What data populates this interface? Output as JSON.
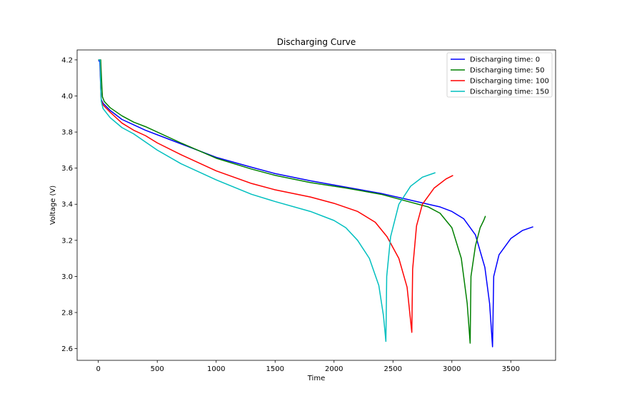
{
  "chart_data": {
    "type": "line",
    "title": "Discharging Curve",
    "xlabel": "Time",
    "ylabel": "Voltage (V)",
    "xlim": [
      -180,
      3880
    ],
    "ylim": [
      2.535,
      4.255
    ],
    "xticks": [
      0,
      500,
      1000,
      1500,
      2000,
      2500,
      3000,
      3500
    ],
    "yticks": [
      2.6,
      2.8,
      3.0,
      3.2,
      3.4,
      3.6,
      3.8,
      4.0,
      4.2
    ],
    "grid": false,
    "legend_position": "top-right",
    "series": [
      {
        "name": "Discharging time: 0",
        "color": "#0000ff",
        "points": [
          [
            0,
            4.195
          ],
          [
            5,
            4.195
          ],
          [
            12,
            4.19
          ],
          [
            20,
            4.05
          ],
          [
            25,
            3.98
          ],
          [
            40,
            3.96
          ],
          [
            100,
            3.92
          ],
          [
            200,
            3.87
          ],
          [
            300,
            3.84
          ],
          [
            400,
            3.81
          ],
          [
            500,
            3.785
          ],
          [
            700,
            3.735
          ],
          [
            1000,
            3.66
          ],
          [
            1300,
            3.605
          ],
          [
            1500,
            3.57
          ],
          [
            1800,
            3.53
          ],
          [
            2100,
            3.495
          ],
          [
            2400,
            3.46
          ],
          [
            2600,
            3.43
          ],
          [
            2800,
            3.4
          ],
          [
            2900,
            3.385
          ],
          [
            3000,
            3.36
          ],
          [
            3100,
            3.32
          ],
          [
            3200,
            3.23
          ],
          [
            3280,
            3.05
          ],
          [
            3320,
            2.85
          ],
          [
            3345,
            2.61
          ],
          [
            3355,
            3.0
          ],
          [
            3400,
            3.12
          ],
          [
            3500,
            3.21
          ],
          [
            3600,
            3.255
          ],
          [
            3690,
            3.275
          ]
        ]
      },
      {
        "name": "Discharging time: 50",
        "color": "#008000",
        "points": [
          [
            0,
            4.2
          ],
          [
            20,
            4.2
          ],
          [
            30,
            4.05
          ],
          [
            35,
            3.995
          ],
          [
            50,
            3.97
          ],
          [
            100,
            3.935
          ],
          [
            200,
            3.89
          ],
          [
            300,
            3.855
          ],
          [
            400,
            3.83
          ],
          [
            500,
            3.8
          ],
          [
            700,
            3.74
          ],
          [
            1000,
            3.655
          ],
          [
            1300,
            3.595
          ],
          [
            1500,
            3.56
          ],
          [
            1800,
            3.52
          ],
          [
            2100,
            3.49
          ],
          [
            2400,
            3.455
          ],
          [
            2600,
            3.42
          ],
          [
            2800,
            3.385
          ],
          [
            2900,
            3.35
          ],
          [
            3000,
            3.27
          ],
          [
            3080,
            3.1
          ],
          [
            3130,
            2.85
          ],
          [
            3155,
            2.63
          ],
          [
            3162,
            3.0
          ],
          [
            3200,
            3.17
          ],
          [
            3240,
            3.27
          ],
          [
            3270,
            3.31
          ],
          [
            3285,
            3.335
          ]
        ]
      },
      {
        "name": "Discharging time: 100",
        "color": "#ff0000",
        "points": [
          [
            0,
            4.2
          ],
          [
            15,
            4.2
          ],
          [
            20,
            4.05
          ],
          [
            25,
            3.975
          ],
          [
            40,
            3.95
          ],
          [
            100,
            3.91
          ],
          [
            200,
            3.85
          ],
          [
            300,
            3.81
          ],
          [
            400,
            3.78
          ],
          [
            500,
            3.74
          ],
          [
            700,
            3.675
          ],
          [
            1000,
            3.585
          ],
          [
            1300,
            3.515
          ],
          [
            1500,
            3.48
          ],
          [
            1800,
            3.44
          ],
          [
            2000,
            3.405
          ],
          [
            2200,
            3.36
          ],
          [
            2350,
            3.3
          ],
          [
            2450,
            3.22
          ],
          [
            2550,
            3.1
          ],
          [
            2620,
            2.94
          ],
          [
            2660,
            2.69
          ],
          [
            2667,
            3.04
          ],
          [
            2700,
            3.28
          ],
          [
            2750,
            3.4
          ],
          [
            2850,
            3.49
          ],
          [
            2950,
            3.54
          ],
          [
            3010,
            3.56
          ]
        ]
      },
      {
        "name": "Discharging time: 150",
        "color": "#00bfbf",
        "points": [
          [
            0,
            4.2
          ],
          [
            15,
            4.2
          ],
          [
            20,
            4.05
          ],
          [
            25,
            3.97
          ],
          [
            40,
            3.93
          ],
          [
            100,
            3.88
          ],
          [
            200,
            3.825
          ],
          [
            300,
            3.79
          ],
          [
            400,
            3.745
          ],
          [
            500,
            3.7
          ],
          [
            700,
            3.625
          ],
          [
            1000,
            3.535
          ],
          [
            1300,
            3.455
          ],
          [
            1500,
            3.415
          ],
          [
            1800,
            3.36
          ],
          [
            2000,
            3.31
          ],
          [
            2100,
            3.27
          ],
          [
            2200,
            3.2
          ],
          [
            2300,
            3.1
          ],
          [
            2380,
            2.95
          ],
          [
            2420,
            2.78
          ],
          [
            2440,
            2.64
          ],
          [
            2447,
            3.0
          ],
          [
            2480,
            3.22
          ],
          [
            2550,
            3.4
          ],
          [
            2650,
            3.5
          ],
          [
            2750,
            3.55
          ],
          [
            2860,
            3.575
          ]
        ]
      }
    ]
  }
}
